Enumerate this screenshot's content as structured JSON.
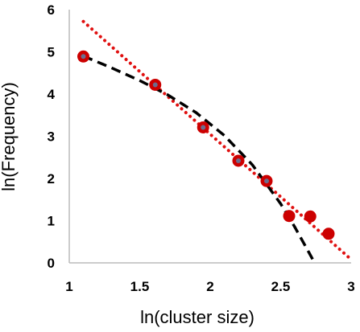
{
  "chart_data": {
    "type": "scatter",
    "xlabel": "ln(cluster size)",
    "ylabel": "ln(Frequency)",
    "xlim": [
      1,
      3
    ],
    "ylim": [
      0,
      6
    ],
    "x_ticks": [
      "1",
      "1.5",
      "2",
      "2.5",
      "3"
    ],
    "y_ticks": [
      "0",
      "1",
      "2",
      "3",
      "4",
      "5",
      "6"
    ],
    "grid": false,
    "legend": "none",
    "series": [
      {
        "kind": "points",
        "color": "#cc0000",
        "inner_color": "#5b7fa6",
        "x": [
          1.1,
          1.61,
          1.95,
          2.2,
          2.4,
          2.56,
          2.71,
          2.84
        ],
        "y": [
          4.89,
          4.22,
          3.21,
          2.42,
          1.94,
          1.11,
          1.1,
          0.69
        ]
      },
      {
        "kind": "linear-fit",
        "style": "dotted",
        "color": "#e01010",
        "x": [
          1.1,
          3.0
        ],
        "y": [
          5.72,
          0.08
        ]
      },
      {
        "kind": "curve-fit",
        "style": "dashed",
        "color": "#000000",
        "x": [
          1.1,
          1.3,
          1.5,
          1.7,
          1.9,
          2.1,
          2.3,
          2.5,
          2.6,
          2.7,
          2.76
        ],
        "y": [
          4.9,
          4.62,
          4.32,
          3.98,
          3.56,
          3.02,
          2.32,
          1.4,
          0.85,
          0.25,
          -0.12
        ]
      }
    ]
  }
}
